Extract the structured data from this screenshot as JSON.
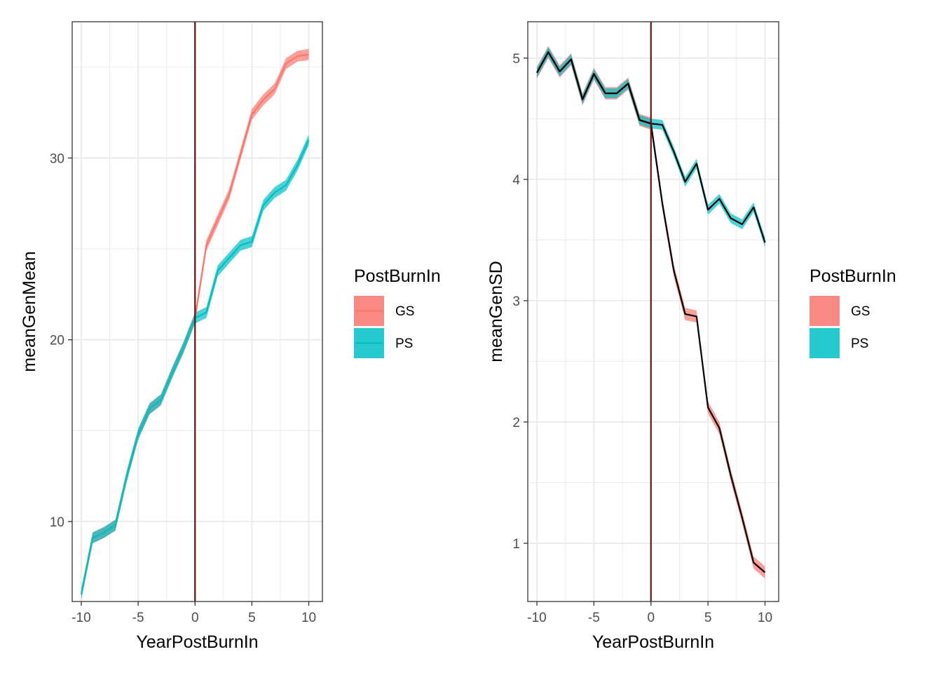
{
  "colors": {
    "GS": "#F8766D",
    "PS": "#00BFC4",
    "vline": "#6b0f0f",
    "meanline": "#000000",
    "grid": "#ebebeb",
    "panel_border": "#333333"
  },
  "chart_data": [
    {
      "type": "line",
      "xlabel": "YearPostBurnIn",
      "ylabel": "meanGenMean",
      "xlim": [
        -10.8,
        11.2
      ],
      "ylim": [
        5.6,
        37.5
      ],
      "xticks": [
        -10,
        -5,
        0,
        5,
        10
      ],
      "xtick_labels": [
        "-10",
        "-5",
        "0",
        "5",
        "10"
      ],
      "yticks": [
        10,
        20,
        30
      ],
      "ytick_labels": [
        "10",
        "20",
        "30"
      ],
      "vline_x": 0,
      "legend": {
        "title": "PostBurnIn",
        "position": "right",
        "entries": [
          {
            "label": "GS",
            "series": "GS"
          },
          {
            "label": "PS",
            "series": "PS"
          }
        ]
      },
      "series": [
        {
          "name": "GS",
          "x": [
            -10,
            -9,
            -8,
            -7,
            -6,
            -5,
            -4,
            -3,
            -2,
            -1,
            0,
            1,
            2,
            3,
            4,
            5,
            6,
            7,
            8,
            9,
            10
          ],
          "y": [
            6.0,
            9.1,
            9.4,
            9.8,
            12.5,
            14.8,
            16.2,
            16.7,
            18.2,
            19.6,
            21.2,
            25.2,
            26.6,
            28.0,
            30.2,
            32.4,
            33.2,
            33.8,
            35.2,
            35.6,
            35.7
          ],
          "band": 0.3
        },
        {
          "name": "PS",
          "x": [
            -10,
            -9,
            -8,
            -7,
            -6,
            -5,
            -4,
            -3,
            -2,
            -1,
            0,
            1,
            2,
            3,
            4,
            5,
            6,
            7,
            8,
            9,
            10
          ],
          "y": [
            6.0,
            9.1,
            9.4,
            9.8,
            12.5,
            14.8,
            16.2,
            16.7,
            18.2,
            19.6,
            21.2,
            21.5,
            23.8,
            24.5,
            25.2,
            25.4,
            27.4,
            28.1,
            28.5,
            29.6,
            31.0
          ],
          "band": 0.3
        }
      ]
    },
    {
      "type": "line",
      "xlabel": "YearPostBurnIn",
      "ylabel": "meanGenSD",
      "xlim": [
        -10.8,
        11.2
      ],
      "ylim": [
        0.52,
        5.3
      ],
      "xticks": [
        -10,
        -5,
        0,
        5,
        10
      ],
      "xtick_labels": [
        "-10",
        "-5",
        "0",
        "5",
        "10"
      ],
      "yticks": [
        1,
        2,
        3,
        4,
        5
      ],
      "ytick_labels": [
        "1",
        "2",
        "3",
        "4",
        "5"
      ],
      "vline_x": 0,
      "legend": {
        "title": "PostBurnIn",
        "position": "right",
        "entries": [
          {
            "label": "GS",
            "series": "GS"
          },
          {
            "label": "PS",
            "series": "PS"
          }
        ]
      },
      "series": [
        {
          "name": "GS",
          "x": [
            -10,
            -9,
            -8,
            -7,
            -6,
            -5,
            -4,
            -3,
            -2,
            -1,
            0,
            1,
            2,
            3,
            4,
            5,
            6,
            7,
            8,
            9,
            10
          ],
          "y": [
            4.88,
            5.05,
            4.89,
            4.99,
            4.66,
            4.87,
            4.71,
            4.71,
            4.79,
            4.49,
            4.46,
            3.8,
            3.25,
            2.89,
            2.87,
            2.12,
            1.95,
            1.56,
            1.21,
            0.84,
            0.76
          ],
          "band": 0.05
        },
        {
          "name": "PS",
          "x": [
            -10,
            -9,
            -8,
            -7,
            -6,
            -5,
            -4,
            -3,
            -2,
            -1,
            0,
            1,
            2,
            3,
            4,
            5,
            6,
            7,
            8,
            9,
            10
          ],
          "y": [
            4.88,
            5.05,
            4.89,
            4.99,
            4.66,
            4.87,
            4.71,
            4.71,
            4.79,
            4.49,
            4.46,
            4.45,
            4.23,
            3.98,
            4.13,
            3.75,
            3.84,
            3.68,
            3.63,
            3.77,
            3.48
          ],
          "band": 0.04
        }
      ]
    }
  ]
}
